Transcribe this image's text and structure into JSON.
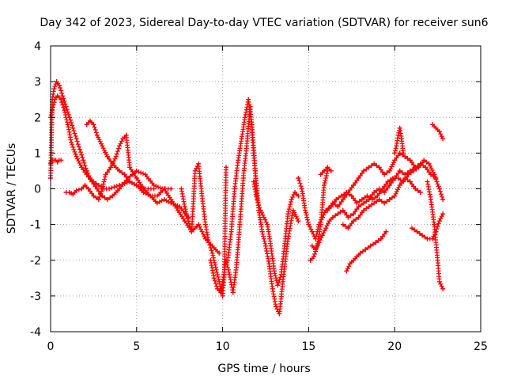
{
  "chart_data": {
    "type": "scatter",
    "title": "Day 342 of 2023, Sidereal Day-to-day VTEC variation (SDTVAR) for receiver sun6",
    "xlabel": "GPS time / hours",
    "ylabel": "SDTVAR / TECUs",
    "xlim": [
      0,
      25
    ],
    "ylim": [
      -4,
      4
    ],
    "xticks": [
      0,
      5,
      10,
      15,
      20,
      25
    ],
    "yticks": [
      -4,
      -3,
      -2,
      -1,
      0,
      1,
      2,
      3,
      4
    ],
    "grid": true,
    "marker": "+",
    "color": "#ff0000",
    "series": [
      {
        "x": [
          0.0,
          0.1,
          0.2,
          0.35,
          0.5,
          0.7,
          0.9,
          1.1,
          1.3,
          1.5,
          1.7,
          1.9,
          2.1,
          2.3,
          2.5,
          2.8,
          3.1,
          3.4,
          3.7,
          4.0,
          4.3,
          4.6,
          5.0,
          5.5,
          6.0
        ],
        "values": [
          0.3,
          2.5,
          2.8,
          3.0,
          2.9,
          2.6,
          2.3,
          2.0,
          1.7,
          1.4,
          1.1,
          0.8,
          0.5,
          0.3,
          0.2,
          0.1,
          0.0,
          0.0,
          0.05,
          0.1,
          0.15,
          0.2,
          0.1,
          0.0,
          0.0
        ]
      },
      {
        "x": [
          0.0,
          0.1,
          0.25,
          0.4,
          0.6,
          0.8,
          1.0,
          1.2,
          1.5,
          1.8,
          2.1,
          2.4,
          2.7,
          3.0,
          3.3,
          3.6,
          4.0,
          4.5,
          5.0,
          5.5,
          6.0,
          6.5,
          7.0
        ],
        "values": [
          2.0,
          2.2,
          2.5,
          2.6,
          2.5,
          2.2,
          1.8,
          1.3,
          0.9,
          0.6,
          0.4,
          0.2,
          0.0,
          -0.2,
          -0.3,
          -0.2,
          0.0,
          0.3,
          0.5,
          0.4,
          0.1,
          0.0,
          0.0
        ]
      },
      {
        "x": [
          0.0,
          0.1,
          0.2,
          0.3,
          0.4,
          0.5,
          0.6
        ],
        "values": [
          0.7,
          0.8,
          0.8,
          0.8,
          0.75,
          0.8,
          0.8
        ]
      },
      {
        "x": [
          0.9,
          1.1,
          1.3,
          1.5,
          1.8,
          2.0,
          2.2,
          2.5,
          2.8,
          3.0,
          3.2,
          3.5,
          3.8,
          4.0,
          4.2,
          4.4,
          4.6,
          5.0,
          5.4,
          5.8,
          6.2,
          6.6,
          7.0,
          7.5,
          8.0
        ],
        "values": [
          -0.1,
          -0.1,
          -0.15,
          -0.05,
          0.0,
          0.1,
          0.0,
          -0.2,
          -0.3,
          0.0,
          0.4,
          0.6,
          0.9,
          1.2,
          1.4,
          1.5,
          0.6,
          0.3,
          0.0,
          -0.2,
          -0.4,
          -0.3,
          -0.4,
          -0.5,
          -0.8
        ]
      },
      {
        "x": [
          2.1,
          2.3,
          2.5,
          2.7,
          3.0,
          3.3,
          3.6,
          4.0,
          4.3,
          4.6,
          5.0,
          5.4,
          5.8,
          6.2,
          6.6,
          7.0,
          7.4,
          7.8,
          8.2,
          8.6,
          9.0,
          9.4,
          9.8
        ],
        "values": [
          1.8,
          1.9,
          1.8,
          1.5,
          1.2,
          0.9,
          0.7,
          0.5,
          0.4,
          0.2,
          0.1,
          -0.1,
          -0.2,
          -0.2,
          0.0,
          -0.3,
          -0.6,
          -0.9,
          -1.2,
          -1.0,
          -1.4,
          -1.6,
          -1.8
        ]
      },
      {
        "x": [
          7.6,
          7.8,
          8.0,
          8.2,
          8.4,
          8.6,
          8.8,
          9.0,
          9.2,
          9.4,
          9.6,
          9.8,
          10.0,
          10.1,
          10.2
        ],
        "values": [
          0.0,
          -0.5,
          -0.9,
          -1.2,
          0.5,
          0.7,
          -0.2,
          -1.0,
          -1.5,
          -1.8,
          -2.2,
          -2.6,
          -3.0,
          -2.4,
          0.6
        ]
      },
      {
        "x": [
          9.3,
          9.5,
          9.7,
          9.9,
          10.0,
          10.2,
          10.4,
          10.6,
          10.8,
          11.0,
          11.2,
          11.4,
          11.6,
          11.8,
          12.0
        ],
        "values": [
          -2.0,
          -2.5,
          -2.8,
          -2.9,
          -2.6,
          -2.0,
          -2.4,
          -2.9,
          -2.2,
          -1.0,
          0.3,
          1.2,
          2.3,
          1.0,
          -0.2
        ]
      },
      {
        "x": [
          10.3,
          10.5,
          10.7,
          10.9,
          11.1,
          11.3,
          11.5,
          11.7,
          11.9,
          12.1,
          12.3,
          12.5,
          12.7,
          12.9,
          13.1,
          13.3,
          13.5,
          13.8,
          14.1,
          14.4
        ],
        "values": [
          -2.0,
          -1.2,
          0.0,
          0.8,
          1.4,
          2.0,
          2.5,
          1.8,
          0.5,
          -0.6,
          -1.2,
          -1.6,
          -2.1,
          -2.8,
          -3.3,
          -3.5,
          -2.6,
          -1.4,
          -0.6,
          -0.9
        ]
      },
      {
        "x": [
          11.8,
          12.0,
          12.2,
          12.4,
          12.6,
          12.8,
          13.0,
          13.2,
          13.4,
          13.6,
          13.8,
          14.0,
          14.2,
          14.4
        ],
        "values": [
          0.2,
          -0.3,
          -0.6,
          -0.8,
          -1.0,
          -1.6,
          -2.3,
          -2.7,
          -2.4,
          -1.6,
          -0.7,
          -0.3,
          -0.1,
          -0.2
        ]
      },
      {
        "x": [
          14.4,
          14.6,
          14.8,
          15.0,
          15.2,
          15.4,
          15.6,
          15.8,
          16.0,
          16.3,
          16.6,
          16.9,
          17.2,
          17.5,
          17.8,
          18.1,
          18.4,
          18.7,
          19.0,
          19.3,
          19.6,
          19.9,
          20.2,
          20.5,
          20.8,
          21.1,
          21.4,
          21.7,
          22.0,
          22.3,
          22.6,
          22.8
        ],
        "values": [
          0.3,
          0.0,
          -0.6,
          -1.0,
          -1.2,
          -1.4,
          -1.0,
          -0.8,
          -0.6,
          -0.5,
          -0.3,
          -0.2,
          -0.1,
          -0.2,
          -0.4,
          -0.3,
          -0.2,
          -0.3,
          -0.2,
          0.0,
          0.2,
          0.3,
          0.3,
          0.2,
          0.4,
          0.5,
          0.6,
          0.8,
          0.7,
          0.4,
          0.0,
          -0.3
        ]
      },
      {
        "x": [
          15.2,
          15.4,
          15.6,
          15.8,
          16.0,
          16.2,
          16.4,
          16.7,
          17.0,
          17.3,
          17.6,
          17.9,
          18.2,
          18.5,
          18.8,
          19.1,
          19.4,
          19.7,
          20.0,
          20.3,
          20.6,
          20.9,
          21.2,
          21.5,
          21.8,
          22.1,
          22.4
        ],
        "values": [
          -1.6,
          -1.7,
          -1.5,
          -1.3,
          -1.1,
          -0.9,
          -0.8,
          -0.7,
          -0.6,
          -0.8,
          -0.7,
          -0.5,
          -0.4,
          -0.3,
          -0.1,
          0.0,
          -0.1,
          0.1,
          0.3,
          0.5,
          0.4,
          0.5,
          0.6,
          0.7,
          0.6,
          0.4,
          0.3
        ]
      },
      {
        "x": [
          15.1,
          15.3,
          15.5,
          15.7,
          15.9,
          16.1
        ],
        "values": [
          -2.0,
          -1.9,
          -1.6,
          -1.0,
          0.1,
          0.5
        ]
      },
      {
        "x": [
          15.7,
          15.9,
          16.1,
          16.3
        ],
        "values": [
          0.4,
          0.5,
          0.6,
          0.5
        ]
      },
      {
        "x": [
          16.1,
          16.4,
          16.7,
          17.0,
          17.3,
          17.6,
          17.9,
          18.2,
          18.5,
          18.8,
          19.1,
          19.4,
          19.7,
          20.0,
          20.3,
          20.6,
          20.9,
          21.2
        ],
        "values": [
          -0.6,
          -0.4,
          -0.5,
          -0.3,
          -0.1,
          0.1,
          0.3,
          0.5,
          0.6,
          0.7,
          0.6,
          0.4,
          0.5,
          0.8,
          1.0,
          0.9,
          0.8,
          0.6
        ]
      },
      {
        "x": [
          17.0,
          17.3,
          17.6,
          17.9,
          18.2,
          18.5,
          18.8,
          19.1,
          19.4,
          19.7,
          20.0,
          20.3,
          20.6,
          20.9,
          21.2,
          21.5
        ],
        "values": [
          -1.0,
          -1.1,
          -0.9,
          -0.8,
          -0.6,
          -0.5,
          -0.4,
          -0.3,
          -0.4,
          -0.3,
          -0.2,
          0.1,
          0.3,
          0.2,
          0.0,
          -0.1
        ]
      },
      {
        "x": [
          17.2,
          17.4,
          17.6,
          17.8,
          18.0,
          18.3,
          18.6,
          18.9,
          19.2,
          19.5
        ],
        "values": [
          -2.3,
          -2.1,
          -2.0,
          -1.9,
          -1.8,
          -1.7,
          -1.6,
          -1.5,
          -1.4,
          -1.2
        ]
      },
      {
        "x": [
          20.0,
          20.1,
          20.2,
          20.3,
          20.4,
          20.5
        ],
        "values": [
          1.0,
          1.2,
          1.5,
          1.7,
          1.4,
          1.0
        ]
      },
      {
        "x": [
          21.0,
          21.3,
          21.6,
          21.9,
          22.2,
          22.4,
          22.6,
          22.8
        ],
        "values": [
          -1.1,
          -1.2,
          -1.3,
          -1.4,
          -1.4,
          -1.2,
          -0.9,
          -0.7
        ]
      },
      {
        "x": [
          21.9,
          22.1,
          22.3,
          22.5,
          22.6,
          22.8
        ],
        "values": [
          0.2,
          -0.3,
          -1.0,
          -2.0,
          -2.6,
          -2.8
        ]
      },
      {
        "x": [
          22.2,
          22.4,
          22.6,
          22.8
        ],
        "values": [
          1.8,
          1.7,
          1.6,
          1.4
        ]
      }
    ]
  }
}
